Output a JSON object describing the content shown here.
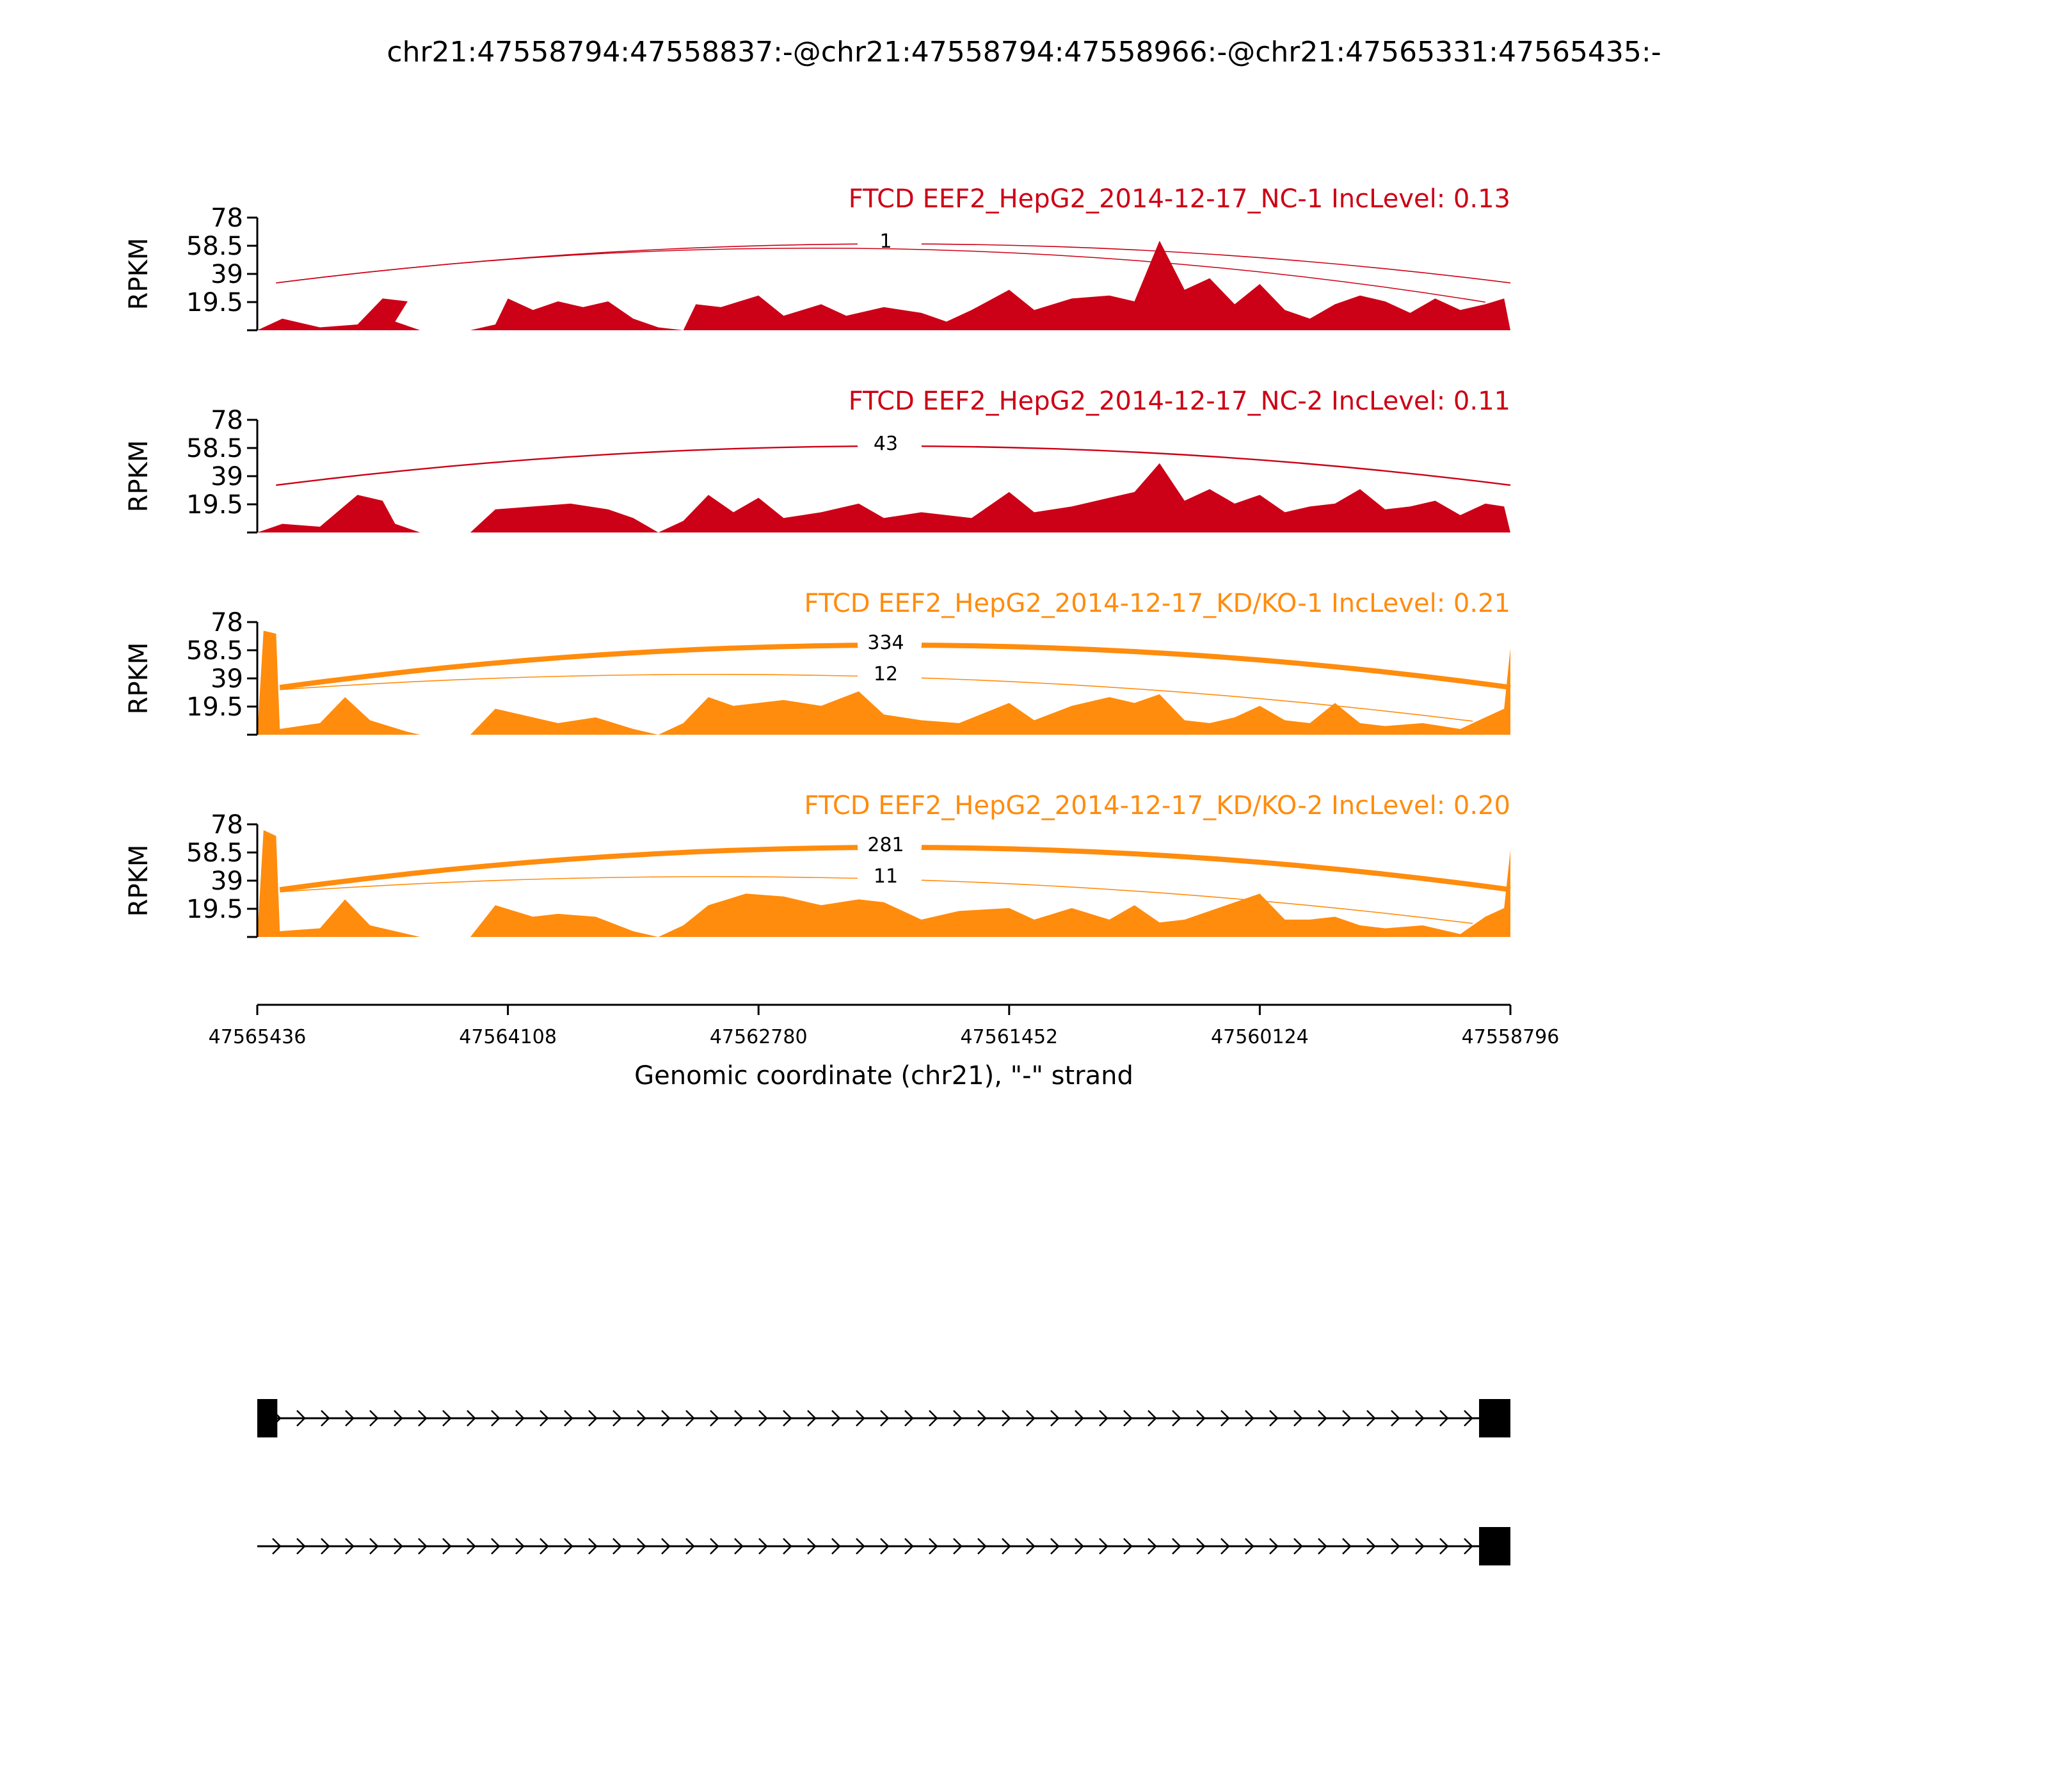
{
  "title": "chr21:47558794:47558837:-@chr21:47558794:47558966:-@chr21:47565331:47565435:-",
  "colors": {
    "nc": "#cc0016",
    "kd": "#ff8c0d",
    "axis": "#000000"
  },
  "chart_data": {
    "type": "area",
    "chart_kind": "sashimi",
    "x_range": [
      47565436,
      47558796
    ],
    "x_reversed": true,
    "ylim": [
      0,
      78
    ],
    "ylabel": "RPKM",
    "ytick_labels": [
      "19.5",
      "39",
      "58.5",
      "78"
    ],
    "xlabel": "Genomic coordinate (chr21), \"-\" strand",
    "xtick_labels": [
      "47565436",
      "47564108",
      "47562780",
      "47561452",
      "47560124",
      "47558796"
    ],
    "panels": [
      {
        "title": "FTCD EEF2_HepG2_2014-12-17_NC-1 IncLevel: 0.13",
        "color": "nc",
        "coverage_profile": [
          [
            0,
            0
          ],
          [
            0.02,
            8
          ],
          [
            0.05,
            2
          ],
          [
            0.08,
            4
          ],
          [
            0.1,
            22
          ],
          [
            0.12,
            20
          ],
          [
            0.11,
            6
          ],
          [
            0.13,
            0
          ],
          [
            0.17,
            0
          ],
          [
            0.19,
            4
          ],
          [
            0.2,
            22
          ],
          [
            0.22,
            14
          ],
          [
            0.24,
            20
          ],
          [
            0.26,
            16
          ],
          [
            0.28,
            20
          ],
          [
            0.3,
            8
          ],
          [
            0.32,
            2
          ],
          [
            0.34,
            0
          ],
          [
            0.35,
            18
          ],
          [
            0.37,
            16
          ],
          [
            0.4,
            24
          ],
          [
            0.42,
            10
          ],
          [
            0.45,
            18
          ],
          [
            0.47,
            10
          ],
          [
            0.5,
            16
          ],
          [
            0.53,
            12
          ],
          [
            0.55,
            6
          ],
          [
            0.57,
            14
          ],
          [
            0.6,
            28
          ],
          [
            0.62,
            14
          ],
          [
            0.65,
            22
          ],
          [
            0.68,
            24
          ],
          [
            0.7,
            20
          ],
          [
            0.72,
            62
          ],
          [
            0.74,
            28
          ],
          [
            0.76,
            36
          ],
          [
            0.78,
            18
          ],
          [
            0.8,
            32
          ],
          [
            0.82,
            14
          ],
          [
            0.84,
            8
          ],
          [
            0.86,
            18
          ],
          [
            0.88,
            24
          ],
          [
            0.9,
            20
          ],
          [
            0.92,
            12
          ],
          [
            0.94,
            22
          ],
          [
            0.96,
            14
          ],
          [
            0.98,
            18
          ],
          [
            0.995,
            22
          ],
          [
            1.0,
            0
          ]
        ],
        "junctions": [
          {
            "label": "1",
            "from": 0.015,
            "to": 1.0,
            "weight": 1,
            "side": "above"
          },
          {
            "label": "",
            "from": 0.015,
            "to": 0.98,
            "weight": 0.5,
            "side": "above"
          }
        ]
      },
      {
        "title": "FTCD EEF2_HepG2_2014-12-17_NC-2 IncLevel: 0.11",
        "color": "nc",
        "coverage_profile": [
          [
            0,
            0
          ],
          [
            0.02,
            6
          ],
          [
            0.05,
            4
          ],
          [
            0.08,
            26
          ],
          [
            0.1,
            22
          ],
          [
            0.11,
            6
          ],
          [
            0.13,
            0
          ],
          [
            0.17,
            0
          ],
          [
            0.19,
            16
          ],
          [
            0.22,
            18
          ],
          [
            0.25,
            20
          ],
          [
            0.28,
            16
          ],
          [
            0.3,
            10
          ],
          [
            0.32,
            0
          ],
          [
            0.34,
            8
          ],
          [
            0.36,
            26
          ],
          [
            0.38,
            14
          ],
          [
            0.4,
            24
          ],
          [
            0.42,
            10
          ],
          [
            0.45,
            14
          ],
          [
            0.48,
            20
          ],
          [
            0.5,
            10
          ],
          [
            0.53,
            14
          ],
          [
            0.55,
            12
          ],
          [
            0.57,
            10
          ],
          [
            0.6,
            28
          ],
          [
            0.62,
            14
          ],
          [
            0.65,
            18
          ],
          [
            0.68,
            24
          ],
          [
            0.7,
            28
          ],
          [
            0.72,
            48
          ],
          [
            0.74,
            22
          ],
          [
            0.76,
            30
          ],
          [
            0.78,
            20
          ],
          [
            0.8,
            26
          ],
          [
            0.82,
            14
          ],
          [
            0.84,
            18
          ],
          [
            0.86,
            20
          ],
          [
            0.88,
            30
          ],
          [
            0.9,
            16
          ],
          [
            0.92,
            18
          ],
          [
            0.94,
            22
          ],
          [
            0.96,
            12
          ],
          [
            0.98,
            20
          ],
          [
            0.995,
            18
          ],
          [
            1.0,
            0
          ]
        ],
        "junctions": [
          {
            "label": "43",
            "from": 0.015,
            "to": 1.0,
            "weight": 1.5,
            "side": "above"
          }
        ]
      },
      {
        "title": "FTCD EEF2_HepG2_2014-12-17_KD/KO-1 IncLevel: 0.21",
        "color": "kd",
        "coverage_profile": [
          [
            0,
            0
          ],
          [
            0.005,
            72
          ],
          [
            0.015,
            70
          ],
          [
            0.018,
            4
          ],
          [
            0.05,
            8
          ],
          [
            0.07,
            26
          ],
          [
            0.09,
            10
          ],
          [
            0.12,
            2
          ],
          [
            0.13,
            0
          ],
          [
            0.17,
            0
          ],
          [
            0.19,
            18
          ],
          [
            0.22,
            12
          ],
          [
            0.24,
            8
          ],
          [
            0.27,
            12
          ],
          [
            0.3,
            4
          ],
          [
            0.32,
            0
          ],
          [
            0.34,
            8
          ],
          [
            0.36,
            26
          ],
          [
            0.38,
            20
          ],
          [
            0.42,
            24
          ],
          [
            0.45,
            20
          ],
          [
            0.48,
            30
          ],
          [
            0.5,
            14
          ],
          [
            0.53,
            10
          ],
          [
            0.56,
            8
          ],
          [
            0.6,
            22
          ],
          [
            0.62,
            10
          ],
          [
            0.65,
            20
          ],
          [
            0.68,
            26
          ],
          [
            0.7,
            22
          ],
          [
            0.72,
            28
          ],
          [
            0.74,
            10
          ],
          [
            0.76,
            8
          ],
          [
            0.78,
            12
          ],
          [
            0.8,
            20
          ],
          [
            0.82,
            10
          ],
          [
            0.84,
            8
          ],
          [
            0.86,
            22
          ],
          [
            0.88,
            8
          ],
          [
            0.9,
            6
          ],
          [
            0.93,
            8
          ],
          [
            0.96,
            4
          ],
          [
            0.98,
            12
          ],
          [
            0.995,
            18
          ],
          [
            1.0,
            60
          ]
        ],
        "junctions": [
          {
            "label": "334",
            "from": 0.018,
            "to": 1.0,
            "weight": 5,
            "side": "above"
          },
          {
            "label": "12",
            "from": 0.018,
            "to": 0.97,
            "weight": 1,
            "side": "below"
          }
        ]
      },
      {
        "title": "FTCD EEF2_HepG2_2014-12-17_KD/KO-2 IncLevel: 0.20",
        "color": "kd",
        "coverage_profile": [
          [
            0,
            0
          ],
          [
            0.005,
            74
          ],
          [
            0.015,
            70
          ],
          [
            0.018,
            4
          ],
          [
            0.05,
            6
          ],
          [
            0.07,
            26
          ],
          [
            0.09,
            8
          ],
          [
            0.12,
            2
          ],
          [
            0.13,
            0
          ],
          [
            0.17,
            0
          ],
          [
            0.19,
            22
          ],
          [
            0.22,
            14
          ],
          [
            0.24,
            16
          ],
          [
            0.27,
            14
          ],
          [
            0.3,
            4
          ],
          [
            0.32,
            0
          ],
          [
            0.34,
            8
          ],
          [
            0.36,
            22
          ],
          [
            0.39,
            30
          ],
          [
            0.42,
            28
          ],
          [
            0.45,
            22
          ],
          [
            0.48,
            26
          ],
          [
            0.5,
            24
          ],
          [
            0.53,
            12
          ],
          [
            0.56,
            18
          ],
          [
            0.6,
            20
          ],
          [
            0.62,
            12
          ],
          [
            0.65,
            20
          ],
          [
            0.68,
            12
          ],
          [
            0.7,
            22
          ],
          [
            0.72,
            10
          ],
          [
            0.74,
            12
          ],
          [
            0.76,
            18
          ],
          [
            0.8,
            30
          ],
          [
            0.82,
            12
          ],
          [
            0.84,
            12
          ],
          [
            0.86,
            14
          ],
          [
            0.88,
            8
          ],
          [
            0.9,
            6
          ],
          [
            0.93,
            8
          ],
          [
            0.96,
            2
          ],
          [
            0.98,
            14
          ],
          [
            0.995,
            20
          ],
          [
            1.0,
            60
          ]
        ],
        "junctions": [
          {
            "label": "281",
            "from": 0.018,
            "to": 1.0,
            "weight": 5,
            "side": "above"
          },
          {
            "label": "11",
            "from": 0.018,
            "to": 0.97,
            "weight": 1,
            "side": "below"
          }
        ]
      }
    ],
    "gene_models": [
      {
        "exons": [
          [
            0.0,
            0.016
          ],
          [
            0.975,
            1.0
          ]
        ]
      },
      {
        "exons": [
          [
            0.975,
            1.0
          ]
        ]
      }
    ]
  }
}
